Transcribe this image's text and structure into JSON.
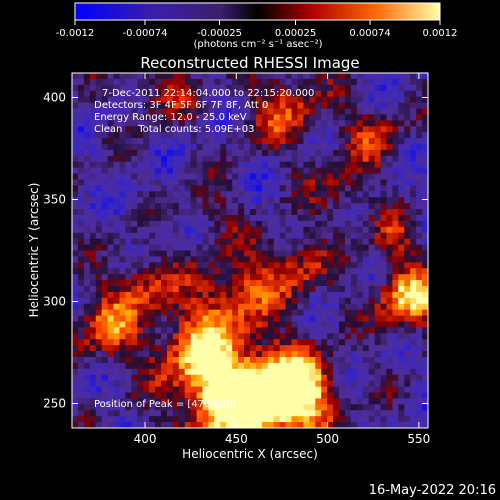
{
  "chart_data": {
    "type": "heatmap",
    "title": "Reconstructed RHESSI Image",
    "xlabel": "Heliocentric X (arcsec)",
    "ylabel": "Heliocentric Y (arcsec)",
    "xlim": [
      360,
      555
    ],
    "ylim": [
      238,
      412
    ],
    "x_ticks": [
      400,
      450,
      500,
      550
    ],
    "y_ticks": [
      250,
      300,
      350,
      400
    ],
    "colorbar": {
      "range": [
        -0.0012,
        0.0012
      ],
      "ticks": [
        -0.0012,
        -0.00074,
        -0.00025,
        0.00025,
        0.00074,
        0.0012
      ],
      "tick_labels": [
        "-0.0012",
        "-0.00074",
        "-0.00025",
        "0.00025",
        "0.00074",
        "0.0012"
      ],
      "unit_label": "(photons cm⁻² s⁻¹ asec⁻²)",
      "colors": [
        "#0000ff",
        "#3b1fa8",
        "#5b2d8f",
        "#000000",
        "#cc0000",
        "#ff6600",
        "#ffff99"
      ]
    },
    "annotations": [
      "7-Dec-2011 22:14:04.000 to 22:15:20.000",
      "Detectors: 3F 4F 5F 6F 7F 8F, Att 0",
      "Energy Range: 12.0 - 25.0 keV",
      "Clean     Total counts: 5.09E+03"
    ],
    "peak_label": "Position of Peak = [478,240]",
    "peak": [
      478,
      240
    ],
    "timestamp": "16-May-2022 20:16"
  }
}
